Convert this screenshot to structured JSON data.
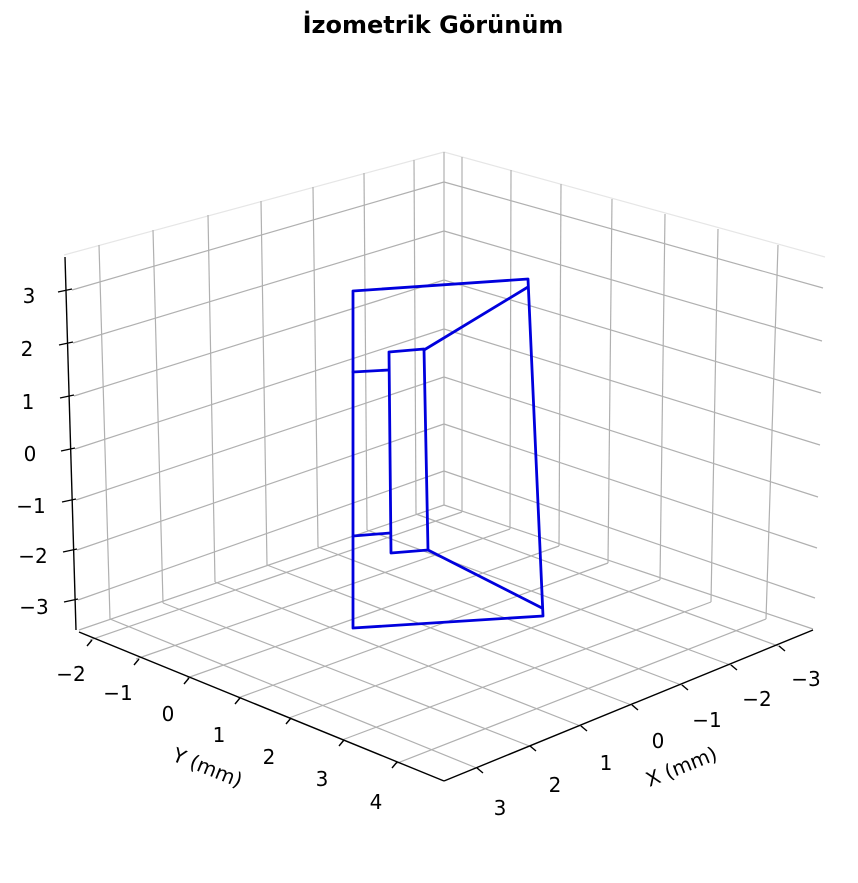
{
  "chart_data": {
    "type": "line3d",
    "title": "İzometrik Görünüm",
    "xlabel": "X (mm)",
    "ylabel": "Y (mm)",
    "zlabel": "",
    "x_ticks": [
      "3",
      "2",
      "1",
      "0",
      "−1",
      "−2",
      "−3"
    ],
    "y_ticks": [
      "−2",
      "−1",
      "0",
      "1",
      "2",
      "3",
      "4"
    ],
    "z_ticks": [
      "3",
      "2",
      "1",
      "0",
      "−1",
      "−2",
      "−3"
    ],
    "grid": true,
    "series_color": "#0000dd",
    "grid_color": "#b0b0b0"
  }
}
